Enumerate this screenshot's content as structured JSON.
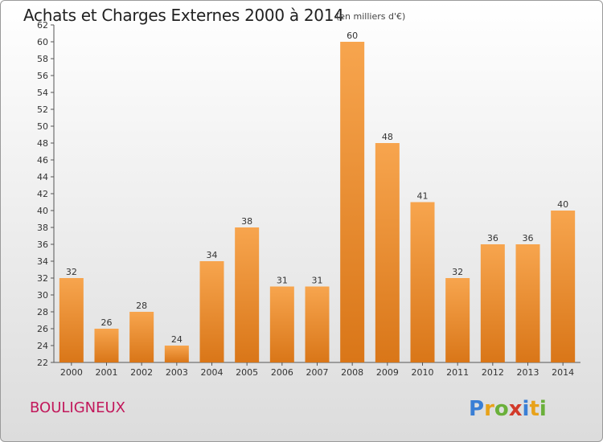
{
  "header": {
    "title": "Achats et Charges Externes 2000 à 2014",
    "subtitle": "(en milliers d'€)"
  },
  "footer": {
    "place": "BOULIGNEUX",
    "logo": "Proxiti"
  },
  "colors": {
    "bar_light": "#f7a54e",
    "bar_dark": "#d97618",
    "place": "#c2185b"
  },
  "chart_data": {
    "type": "bar",
    "title": "Achats et Charges Externes 2000 à 2014",
    "subtitle": "(en milliers d'€)",
    "xlabel": "",
    "ylabel": "",
    "ylim": [
      22,
      62
    ],
    "y_ticks": [
      22,
      24,
      26,
      28,
      30,
      32,
      34,
      36,
      38,
      40,
      42,
      44,
      46,
      48,
      50,
      52,
      54,
      56,
      58,
      60,
      62
    ],
    "grid": false,
    "categories": [
      "2000",
      "2001",
      "2002",
      "2003",
      "2004",
      "2005",
      "2006",
      "2007",
      "2008",
      "2009",
      "2010",
      "2011",
      "2012",
      "2013",
      "2014"
    ],
    "values": [
      32,
      26,
      28,
      24,
      34,
      38,
      31,
      31,
      60,
      48,
      41,
      32,
      36,
      36,
      40
    ]
  }
}
